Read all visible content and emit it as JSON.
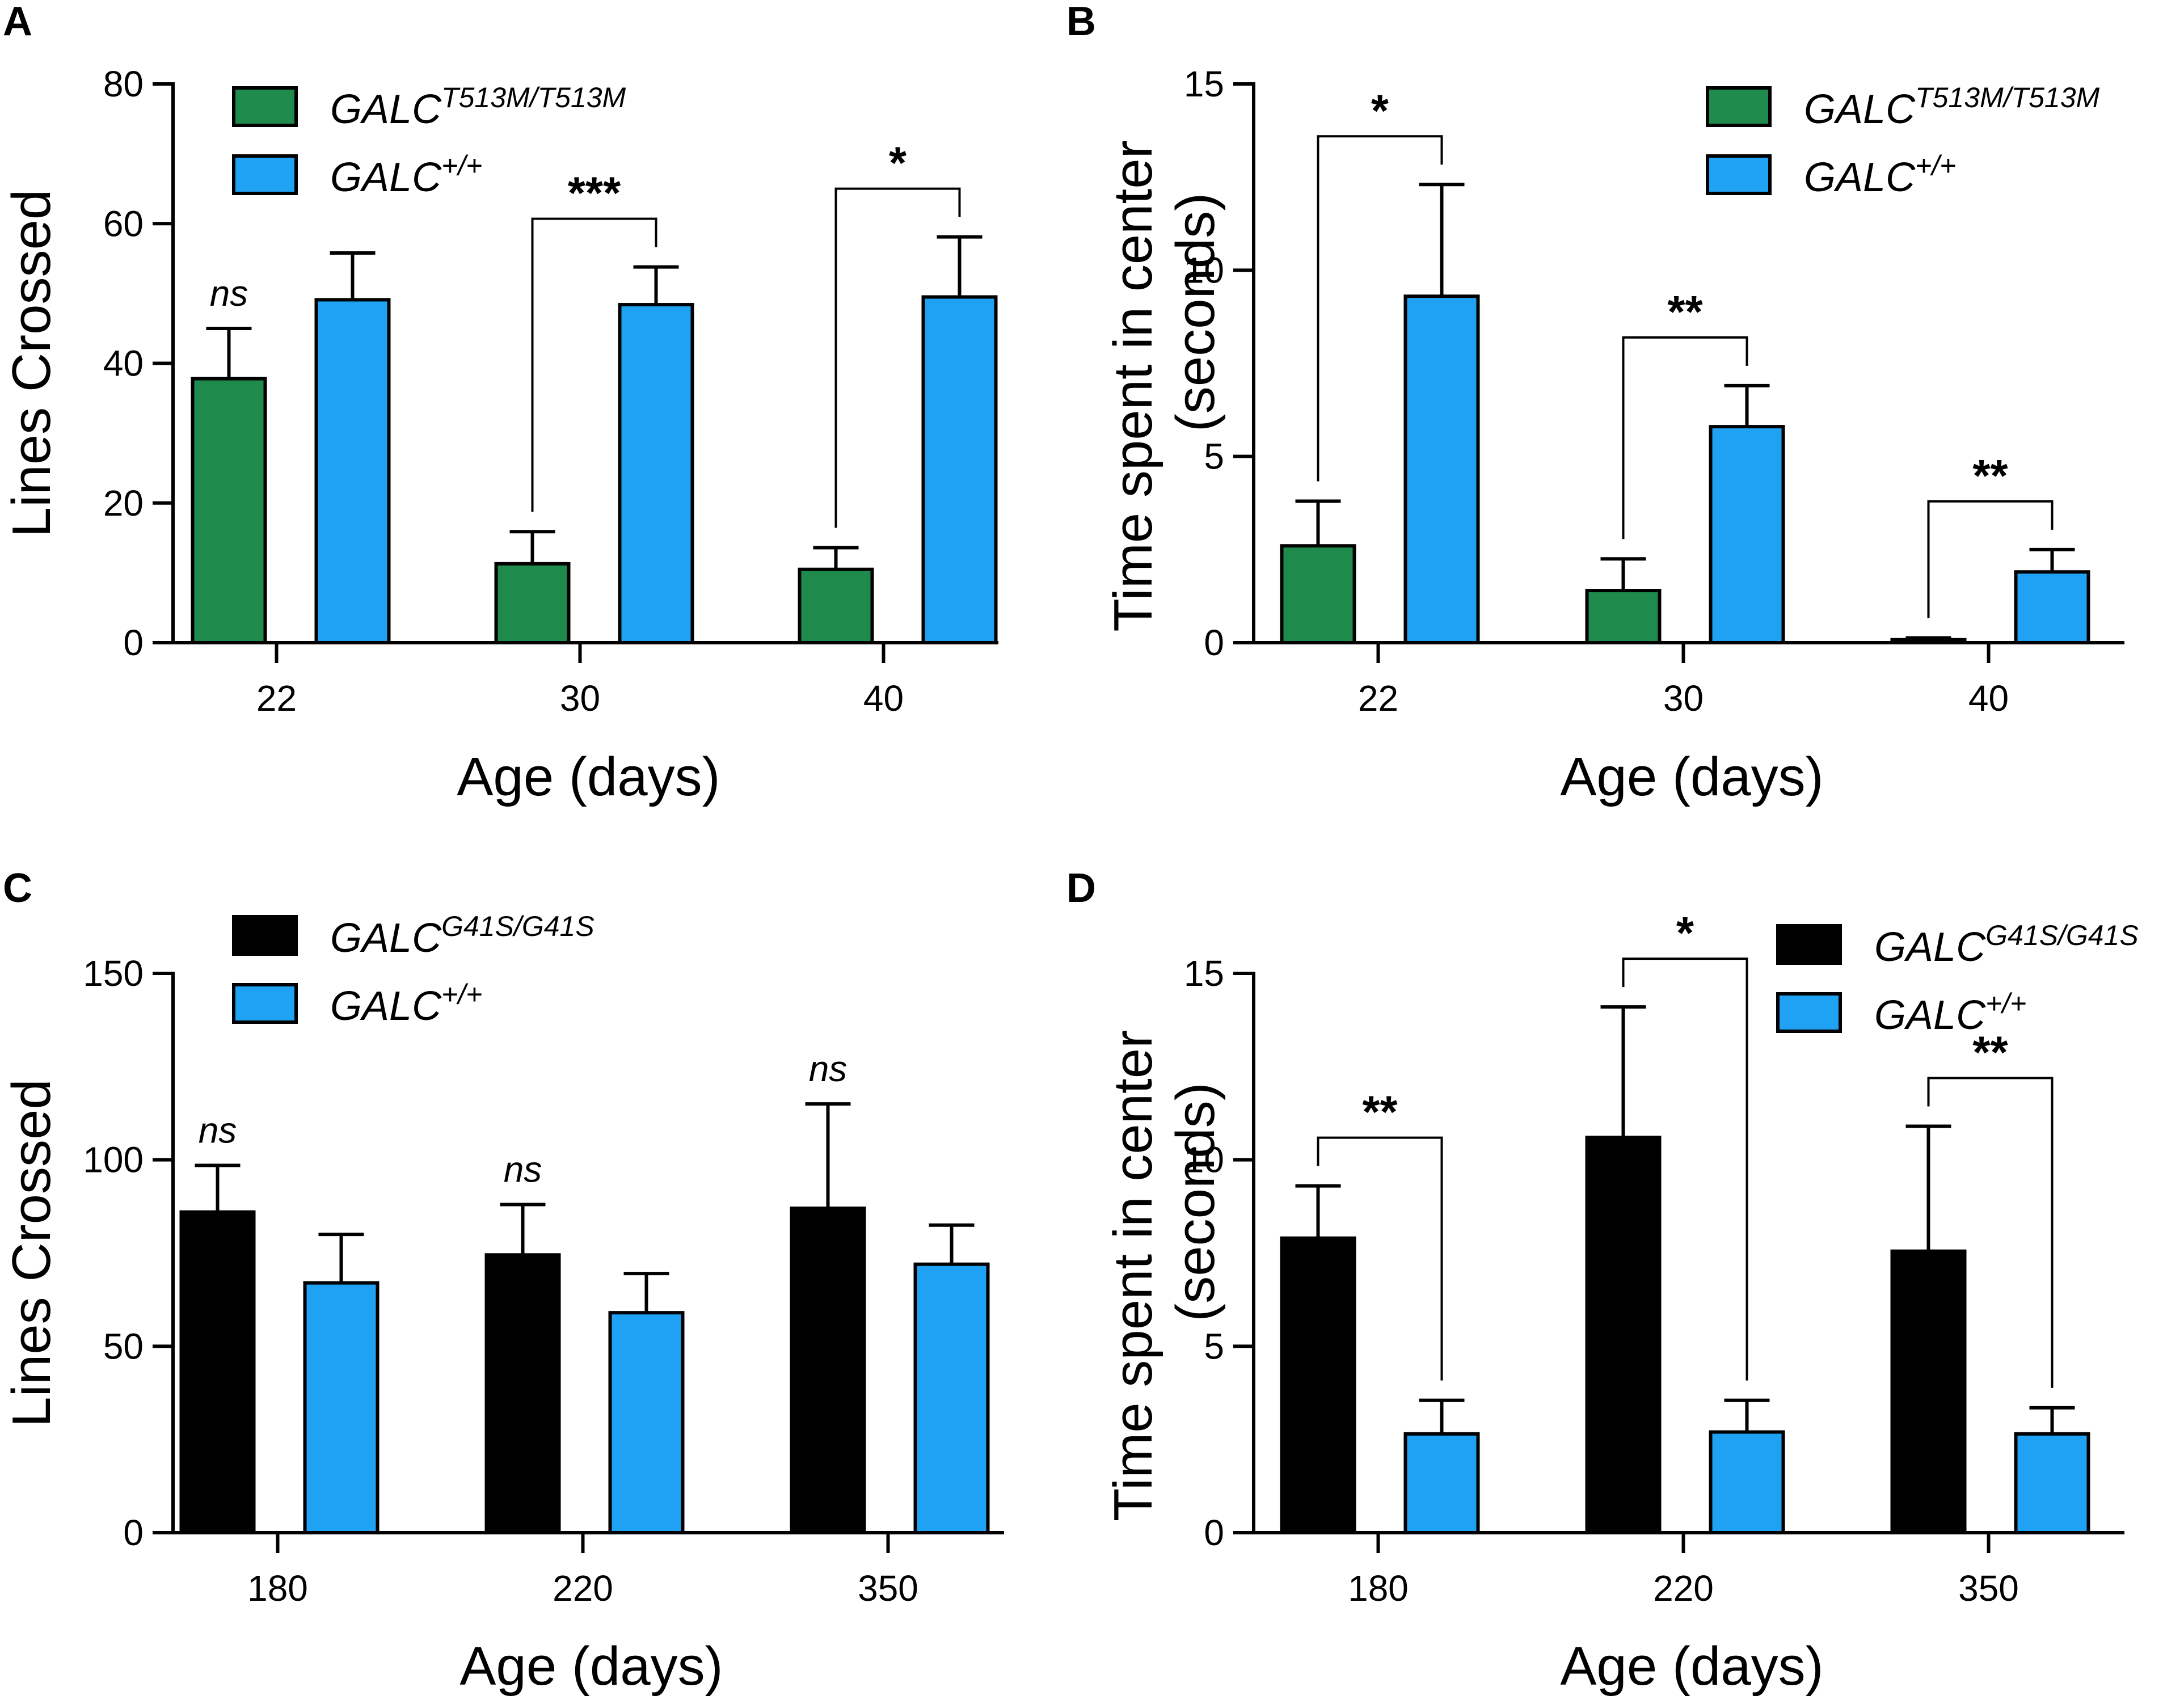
{
  "colors": {
    "green": "#1e8b4c",
    "blue": "#1fa2f4",
    "black": "#000000",
    "axis": "#000000"
  },
  "chart_data": [
    {
      "panel": "A",
      "type": "bar",
      "title": "",
      "xlabel": "Age (days)",
      "ylabel": "Lines Crossed",
      "ylim": [
        0,
        80
      ],
      "yticks": [
        0,
        20,
        40,
        60,
        80
      ],
      "categories": [
        "22",
        "30",
        "40"
      ],
      "legend_position": "top-left",
      "series": [
        {
          "name": "GALC",
          "sup": "T513M/T513M",
          "color": "green",
          "values": [
            37.8,
            11.3,
            10.5
          ],
          "errors": [
            7.2,
            4.6,
            3.1
          ]
        },
        {
          "name": "GALC",
          "sup": "+/+",
          "color": "blue",
          "values": [
            49.1,
            48.4,
            49.5
          ],
          "errors": [
            6.7,
            5.4,
            8.6
          ]
        }
      ],
      "annotations": [
        {
          "category": 0,
          "label": "ns",
          "type": "ns"
        },
        {
          "category": 1,
          "label": "***",
          "type": "bracket"
        },
        {
          "category": 2,
          "label": "*",
          "type": "bracket"
        }
      ]
    },
    {
      "panel": "B",
      "type": "bar",
      "title": "",
      "xlabel": "Age (days)",
      "ylabel": "Time spent in center",
      "ylabel2": "(seconds)",
      "ylim": [
        0,
        15
      ],
      "yticks": [
        0,
        5,
        10,
        15
      ],
      "categories": [
        "22",
        "30",
        "40"
      ],
      "legend_position": "top-right",
      "series": [
        {
          "name": "GALC",
          "sup": "T513M/T513M",
          "color": "green",
          "values": [
            2.6,
            1.4,
            0.08
          ],
          "errors": [
            1.2,
            0.85,
            0.05
          ]
        },
        {
          "name": "GALC",
          "sup": "+/+",
          "color": "blue",
          "values": [
            9.3,
            5.8,
            1.9
          ],
          "errors": [
            3.0,
            1.1,
            0.6
          ]
        }
      ],
      "annotations": [
        {
          "category": 0,
          "label": "*",
          "type": "bracket"
        },
        {
          "category": 1,
          "label": "**",
          "type": "bracket"
        },
        {
          "category": 2,
          "label": "**",
          "type": "bracket"
        }
      ]
    },
    {
      "panel": "C",
      "type": "bar",
      "title": "",
      "xlabel": "Age (days)",
      "ylabel": "Lines Crossed",
      "ylim": [
        0,
        150
      ],
      "yticks": [
        0,
        50,
        100,
        150
      ],
      "categories": [
        "180",
        "220",
        "350"
      ],
      "legend_position": "top-left",
      "series": [
        {
          "name": "GALC",
          "sup": "G41S/G41S",
          "color": "black",
          "values": [
            86,
            74.5,
            87
          ],
          "errors": [
            12.5,
            13.5,
            28
          ]
        },
        {
          "name": "GALC",
          "sup": "+/+",
          "color": "blue",
          "values": [
            67,
            59,
            72
          ],
          "errors": [
            13,
            10.5,
            10.5
          ]
        }
      ],
      "annotations": [
        {
          "category": 0,
          "label": "ns",
          "type": "ns"
        },
        {
          "category": 1,
          "label": "ns",
          "type": "ns"
        },
        {
          "category": 2,
          "label": "ns",
          "type": "ns"
        }
      ]
    },
    {
      "panel": "D",
      "type": "bar",
      "title": "",
      "xlabel": "Age (days)",
      "ylabel": "Time spent in center",
      "ylabel2": "(seconds)",
      "ylim": [
        0,
        15
      ],
      "yticks": [
        0,
        5,
        10,
        15
      ],
      "categories": [
        "180",
        "220",
        "350"
      ],
      "legend_position": "top-right",
      "series": [
        {
          "name": "GALC",
          "sup": "G41S/G41S",
          "color": "black",
          "values": [
            7.9,
            10.6,
            7.55
          ],
          "errors": [
            1.4,
            3.5,
            3.35
          ]
        },
        {
          "name": "GALC",
          "sup": "+/+",
          "color": "blue",
          "values": [
            2.65,
            2.7,
            2.65
          ],
          "errors": [
            0.9,
            0.85,
            0.7
          ]
        }
      ],
      "annotations": [
        {
          "category": 0,
          "label": "**",
          "type": "bracket"
        },
        {
          "category": 1,
          "label": "*",
          "type": "bracket"
        },
        {
          "category": 2,
          "label": "**",
          "type": "bracket"
        }
      ]
    }
  ]
}
